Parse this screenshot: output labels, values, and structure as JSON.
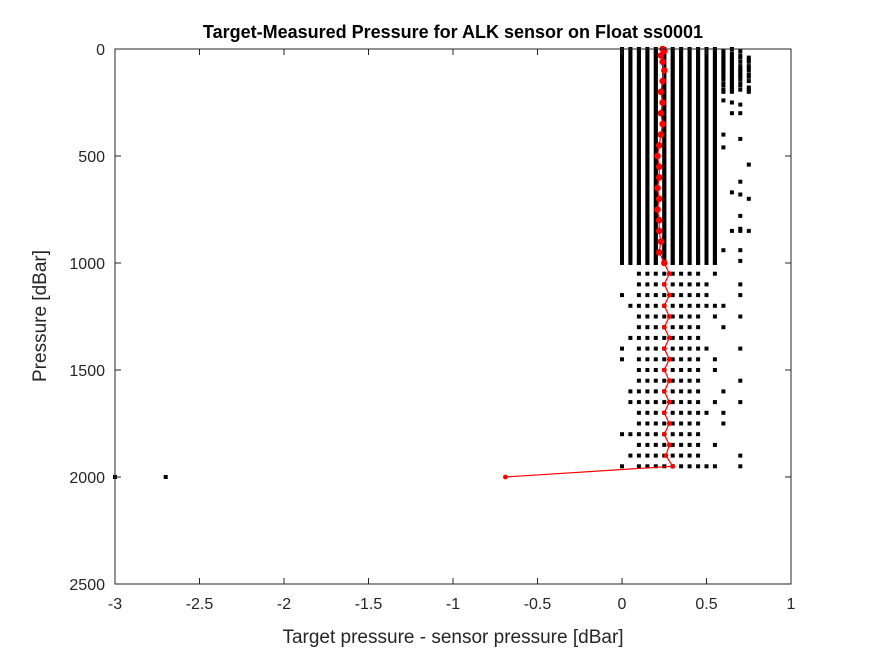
{
  "chart_data": {
    "type": "scatter",
    "title": "Target-Measured Pressure for ALK sensor on Float ss0001",
    "xlabel": "Target pressure - sensor pressure [dBar]",
    "ylabel": "Pressure [dBar]",
    "xlim": [
      -3,
      1
    ],
    "ylim": [
      0,
      2500
    ],
    "y_reversed": true,
    "grid": false,
    "xticks": [
      -3,
      -2.5,
      -2,
      -1.5,
      -1,
      -0.5,
      0,
      0.5,
      1
    ],
    "xtick_labels": [
      "-3",
      "-2.5",
      "-2",
      "-1.5",
      "-1",
      "-0.5",
      "0",
      "0.5",
      "1"
    ],
    "yticks": [
      0,
      500,
      1000,
      1500,
      2000,
      2500
    ],
    "ytick_labels": [
      "0",
      "500",
      "1000",
      "1500",
      "2000",
      "2500"
    ],
    "colors": {
      "points": "#000000",
      "mean_line": "#ff0000",
      "axis": "#262626"
    },
    "series": [
      {
        "style": "points",
        "upper_band": {
          "pressure_range": [
            0,
            1000
          ],
          "pressure_step": 10,
          "x_columns": [
            0.0,
            0.05,
            0.1,
            0.15,
            0.2,
            0.25,
            0.3,
            0.35,
            0.4,
            0.45,
            0.5,
            0.55
          ],
          "x_extremes": [
            0.6,
            0.65,
            0.7,
            0.75
          ]
        },
        "lower_band": {
          "pressure_range": [
            1000,
            1950
          ],
          "pressure_step": 50,
          "x_columns": [
            0.1,
            0.15,
            0.2,
            0.25,
            0.3,
            0.35,
            0.4,
            0.45
          ],
          "x_extremes": [
            0.0,
            0.05,
            0.5,
            0.55,
            0.6,
            0.7
          ]
        },
        "outliers": [
          [
            -3.0,
            2000
          ],
          [
            -2.7,
            2000
          ]
        ]
      },
      {
        "style": "line",
        "points": [
          [
            0.24,
            0
          ],
          [
            0.25,
            10
          ],
          [
            0.23,
            30
          ],
          [
            0.24,
            60
          ],
          [
            0.25,
            100
          ],
          [
            0.24,
            150
          ],
          [
            0.23,
            200
          ],
          [
            0.24,
            250
          ],
          [
            0.23,
            300
          ],
          [
            0.24,
            350
          ],
          [
            0.23,
            400
          ],
          [
            0.22,
            450
          ],
          [
            0.21,
            500
          ],
          [
            0.22,
            550
          ],
          [
            0.22,
            600
          ],
          [
            0.21,
            650
          ],
          [
            0.22,
            700
          ],
          [
            0.21,
            750
          ],
          [
            0.22,
            800
          ],
          [
            0.22,
            850
          ],
          [
            0.23,
            900
          ],
          [
            0.22,
            950
          ],
          [
            0.25,
            1000
          ],
          [
            0.28,
            1050
          ],
          [
            0.25,
            1100
          ],
          [
            0.28,
            1150
          ],
          [
            0.25,
            1200
          ],
          [
            0.28,
            1250
          ],
          [
            0.25,
            1300
          ],
          [
            0.28,
            1350
          ],
          [
            0.25,
            1400
          ],
          [
            0.28,
            1450
          ],
          [
            0.25,
            1500
          ],
          [
            0.28,
            1550
          ],
          [
            0.25,
            1600
          ],
          [
            0.28,
            1650
          ],
          [
            0.25,
            1700
          ],
          [
            0.28,
            1750
          ],
          [
            0.25,
            1800
          ],
          [
            0.28,
            1850
          ],
          [
            0.26,
            1900
          ],
          [
            0.3,
            1950
          ],
          [
            -0.69,
            2000
          ]
        ]
      }
    ]
  }
}
